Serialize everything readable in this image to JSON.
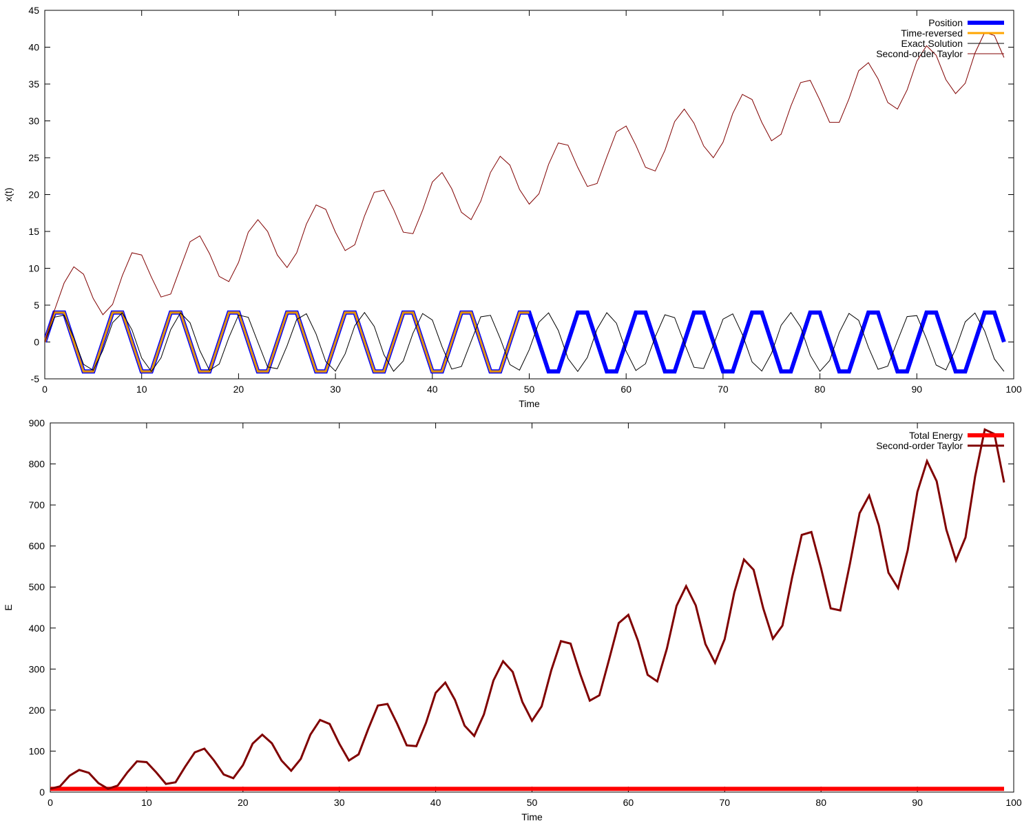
{
  "colors": {
    "position": "#0000ff",
    "time_reversed": "#ffa500",
    "exact": "#000000",
    "taylor": "#800000",
    "energy": "#ff0000"
  },
  "chart_data": [
    {
      "type": "line",
      "xlabel": "Time",
      "ylabel": "x(t)",
      "xlim": [
        0,
        100
      ],
      "ylim": [
        -5,
        45
      ],
      "x_ticks": [
        0,
        10,
        20,
        30,
        40,
        50,
        60,
        70,
        80,
        90,
        100
      ],
      "y_ticks": [
        -5,
        0,
        5,
        10,
        15,
        20,
        25,
        30,
        35,
        40,
        45
      ],
      "grid": false,
      "legend_position": "top-right",
      "series": [
        {
          "name": "Position",
          "color": "#0000ff",
          "style": "thick",
          "x": [
            0,
            1,
            2,
            4,
            5,
            7,
            8,
            10,
            11,
            13,
            14,
            16,
            17,
            19,
            20,
            22,
            23,
            25,
            26,
            28,
            29,
            31,
            32,
            34,
            35,
            37,
            38,
            40,
            41,
            43,
            44,
            46,
            47,
            49,
            50,
            52,
            53,
            55,
            56,
            58,
            59,
            61,
            62,
            64,
            65,
            67,
            68,
            70,
            71,
            73,
            74,
            76,
            77,
            79,
            80,
            82,
            83,
            85,
            86,
            88,
            89,
            91,
            92,
            94,
            95,
            97,
            98,
            99
          ],
          "y": [
            0,
            4,
            4,
            -4,
            -4,
            4,
            4,
            -4,
            -4,
            4,
            4,
            -4,
            -4,
            4,
            4,
            -4,
            -4,
            4,
            4,
            -4,
            -4,
            4,
            4,
            -4,
            -4,
            4,
            4,
            -4,
            -4,
            4,
            4,
            -4,
            -4,
            4,
            4,
            -4,
            -4,
            4,
            4,
            -4,
            -4,
            4,
            4,
            -4,
            -4,
            4,
            4,
            -4,
            -4,
            4,
            4,
            -4,
            -4,
            4,
            4,
            -4,
            -4,
            4,
            4,
            -4,
            -4,
            4,
            4,
            -4,
            -4,
            4,
            4,
            0
          ]
        },
        {
          "name": "Time-reversed",
          "color": "#ffa500",
          "style": "medium",
          "x": [
            0,
            1,
            2,
            4,
            5,
            7,
            8,
            10,
            11,
            13,
            14,
            16,
            17,
            19,
            20,
            22,
            23,
            25,
            26,
            28,
            29,
            31,
            32,
            34,
            35,
            37,
            38,
            40,
            41,
            43,
            44,
            46,
            47,
            49,
            50
          ],
          "y": [
            0,
            4,
            4,
            -4,
            -4,
            4,
            4,
            -4,
            -4,
            4,
            4,
            -4,
            -4,
            4,
            4,
            -4,
            -4,
            4,
            4,
            -4,
            -4,
            4,
            4,
            -4,
            -4,
            4,
            4,
            -4,
            -4,
            4,
            4,
            -4,
            -4,
            4,
            4
          ]
        },
        {
          "name": "Exact Solution",
          "color": "#000000",
          "style": "thin",
          "x": [
            0,
            1,
            2,
            3,
            4,
            5,
            6,
            7,
            8,
            9,
            10,
            11,
            12,
            13,
            14,
            15,
            16,
            17,
            18,
            19,
            20,
            21,
            22,
            23,
            24,
            25,
            26,
            27,
            28,
            29,
            30,
            31,
            32,
            33,
            34,
            35,
            36,
            37,
            38,
            39,
            40,
            41,
            42,
            43,
            44,
            45,
            46,
            47,
            48,
            49,
            50,
            51,
            52,
            53,
            54,
            55,
            56,
            57,
            58,
            59,
            60,
            61,
            62,
            63,
            64,
            65,
            66,
            67,
            68,
            69,
            70,
            71,
            72,
            73,
            74,
            75,
            76,
            77,
            78,
            79,
            80,
            81,
            82,
            83,
            84,
            85,
            86,
            87,
            88,
            89,
            90,
            91,
            92,
            93,
            94,
            95,
            96,
            97,
            98,
            99
          ],
          "y": [
            0,
            3.37,
            3.64,
            0.56,
            -3.03,
            -3.84,
            -1.12,
            2.63,
            3.96,
            1.65,
            -2.18,
            -4.0,
            -2.15,
            1.68,
            3.96,
            2.6,
            -1.16,
            -3.85,
            -3.0,
            0.6,
            3.65,
            3.35,
            -0.04,
            -3.39,
            -3.63,
            -0.53,
            3.05,
            3.83,
            1.08,
            -2.65,
            -3.95,
            -1.61,
            2.21,
            4.0,
            2.12,
            -1.72,
            -3.97,
            -2.58,
            1.2,
            3.86,
            2.98,
            -0.64,
            -3.67,
            -3.33,
            0.08,
            3.41,
            3.62,
            0.49,
            -3.07,
            -3.82,
            -1.05,
            2.68,
            3.95,
            1.57,
            -2.24,
            -4.0,
            -2.09,
            1.76,
            3.97,
            2.55,
            -1.24,
            -3.87,
            -2.95,
            0.68,
            3.69,
            3.31,
            -0.12,
            -3.43,
            -3.6,
            -0.45,
            3.1,
            3.81,
            1.01,
            -2.71,
            -3.94,
            -1.53,
            2.27,
            4.0,
            2.05,
            -1.79,
            -3.98,
            -2.52,
            1.28,
            3.88,
            2.93,
            -0.72,
            -3.7,
            -3.28,
            0.16,
            3.45,
            3.58,
            0.41,
            -3.13,
            -3.79,
            -0.97,
            2.74,
            3.93,
            1.49,
            -2.3,
            -3.99
          ]
        },
        {
          "name": "Second-order Taylor",
          "color": "#800000",
          "style": "thin",
          "x": [
            0,
            1,
            2,
            3,
            4,
            5,
            6,
            7,
            8,
            9,
            10,
            11,
            12,
            13,
            14,
            15,
            16,
            17,
            18,
            19,
            20,
            21,
            22,
            23,
            24,
            25,
            26,
            27,
            28,
            29,
            30,
            31,
            32,
            33,
            34,
            35,
            36,
            37,
            38,
            39,
            40,
            41,
            42,
            43,
            44,
            45,
            46,
            47,
            48,
            49,
            50,
            51,
            52,
            53,
            54,
            55,
            56,
            57,
            58,
            59,
            60,
            61,
            62,
            63,
            64,
            65,
            66,
            67,
            68,
            69,
            70,
            71,
            72,
            73,
            74,
            75,
            76,
            77,
            78,
            79,
            80,
            81,
            82,
            83,
            84,
            85,
            86,
            87,
            88,
            89,
            90,
            91,
            92,
            93,
            94,
            95,
            96,
            97,
            98,
            99
          ],
          "y": [
            0,
            4.3,
            8.0,
            10.2,
            9.2,
            5.9,
            3.7,
            5.1,
            9.0,
            12.1,
            11.8,
            8.8,
            6.1,
            6.5,
            10.1,
            13.6,
            14.4,
            12.0,
            8.9,
            8.2,
            10.8,
            14.9,
            16.6,
            15.0,
            11.8,
            10.1,
            12.1,
            16.0,
            18.6,
            18.0,
            14.9,
            12.4,
            13.2,
            17.1,
            20.3,
            20.6,
            18.0,
            14.9,
            14.7,
            17.9,
            21.7,
            23.0,
            20.8,
            17.6,
            16.6,
            19.1,
            23.0,
            25.2,
            24.0,
            20.7,
            18.7,
            20.1,
            24.1,
            27.0,
            26.7,
            23.7,
            21.1,
            21.5,
            25.1,
            28.5,
            29.3,
            26.7,
            23.7,
            23.2,
            26.0,
            29.9,
            31.6,
            29.7,
            26.6,
            25.0,
            27.1,
            31.0,
            33.6,
            32.9,
            29.8,
            27.3,
            28.2,
            32.0,
            35.2,
            35.5,
            32.8,
            29.8,
            29.8,
            33.0,
            36.8,
            37.9,
            35.7,
            32.5,
            31.6,
            34.2,
            38.1,
            40.2,
            38.9,
            35.6,
            33.7,
            35.1,
            39.2,
            42.0,
            41.6,
            38.6
          ]
        }
      ]
    },
    {
      "type": "line",
      "xlabel": "Time",
      "ylabel": "E",
      "xlim": [
        0,
        100
      ],
      "ylim": [
        0,
        900
      ],
      "x_ticks": [
        0,
        10,
        20,
        30,
        40,
        50,
        60,
        70,
        80,
        90,
        100
      ],
      "y_ticks": [
        0,
        100,
        200,
        300,
        400,
        500,
        600,
        700,
        800,
        900
      ],
      "grid": false,
      "legend_position": "top-right",
      "series": [
        {
          "name": "Total Energy",
          "color": "#ff0000",
          "style": "thick",
          "x": [
            0,
            99
          ],
          "y": [
            8,
            8
          ]
        },
        {
          "name": "Second-order Taylor",
          "color": "#800000",
          "style": "medium",
          "x": [
            0,
            1,
            2,
            3,
            4,
            5,
            6,
            7,
            8,
            9,
            10,
            11,
            12,
            13,
            14,
            15,
            16,
            17,
            18,
            19,
            20,
            21,
            22,
            23,
            24,
            25,
            26,
            27,
            28,
            29,
            30,
            31,
            32,
            33,
            34,
            35,
            36,
            37,
            38,
            39,
            40,
            41,
            42,
            43,
            44,
            45,
            46,
            47,
            48,
            49,
            50,
            51,
            52,
            53,
            54,
            55,
            56,
            57,
            58,
            59,
            60,
            61,
            62,
            63,
            64,
            65,
            66,
            67,
            68,
            69,
            70,
            71,
            72,
            73,
            74,
            75,
            76,
            77,
            78,
            79,
            80,
            81,
            82,
            83,
            84,
            85,
            86,
            87,
            88,
            89,
            90,
            91,
            92,
            93,
            94,
            95,
            96,
            97,
            98,
            99
          ],
          "y": [
            8,
            14,
            40,
            54,
            47,
            22,
            8,
            16,
            48,
            75,
            73,
            48,
            20,
            24,
            62,
            97,
            106,
            77,
            43,
            34,
            66,
            118,
            140,
            119,
            77,
            52,
            81,
            140,
            176,
            166,
            118,
            77,
            92,
            154,
            211,
            215,
            167,
            114,
            112,
            169,
            242,
            267,
            225,
            162,
            137,
            189,
            272,
            319,
            293,
            220,
            174,
            209,
            297,
            368,
            362,
            288,
            223,
            236,
            323,
            412,
            432,
            369,
            286,
            270,
            350,
            454,
            502,
            455,
            361,
            315,
            373,
            487,
            567,
            542,
            448,
            374,
            406,
            523,
            627,
            634,
            546,
            448,
            443,
            557,
            680,
            723,
            650,
            535,
            497,
            590,
            732,
            807,
            758,
            640,
            565,
            621,
            770,
            884,
            873,
            755
          ]
        }
      ]
    }
  ]
}
